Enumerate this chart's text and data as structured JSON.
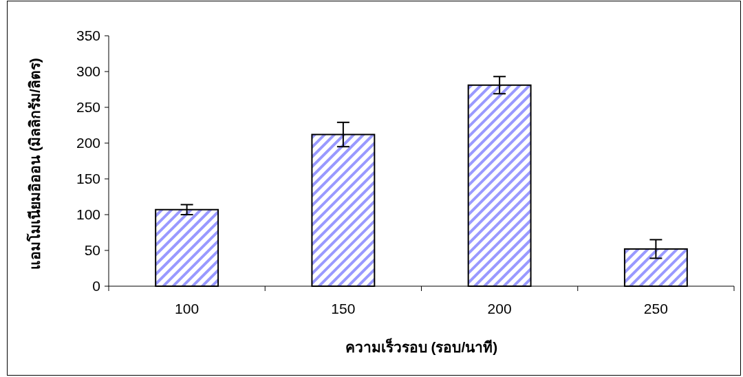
{
  "chart_data": {
    "type": "bar",
    "xlabel": "ความเร็วรอบ (รอบ/นาที)",
    "ylabel": "แอมโมเนียมอิออน (มิลลิกรัม/ลิตร)",
    "categories": [
      "100",
      "150",
      "200",
      "250"
    ],
    "values": [
      107,
      212,
      281,
      52
    ],
    "errors": [
      7,
      17,
      12,
      13
    ],
    "color": "#9999ff",
    "ylim": [
      0,
      350
    ],
    "yticks": [
      0,
      50,
      100,
      150,
      200,
      250,
      300,
      350
    ]
  }
}
